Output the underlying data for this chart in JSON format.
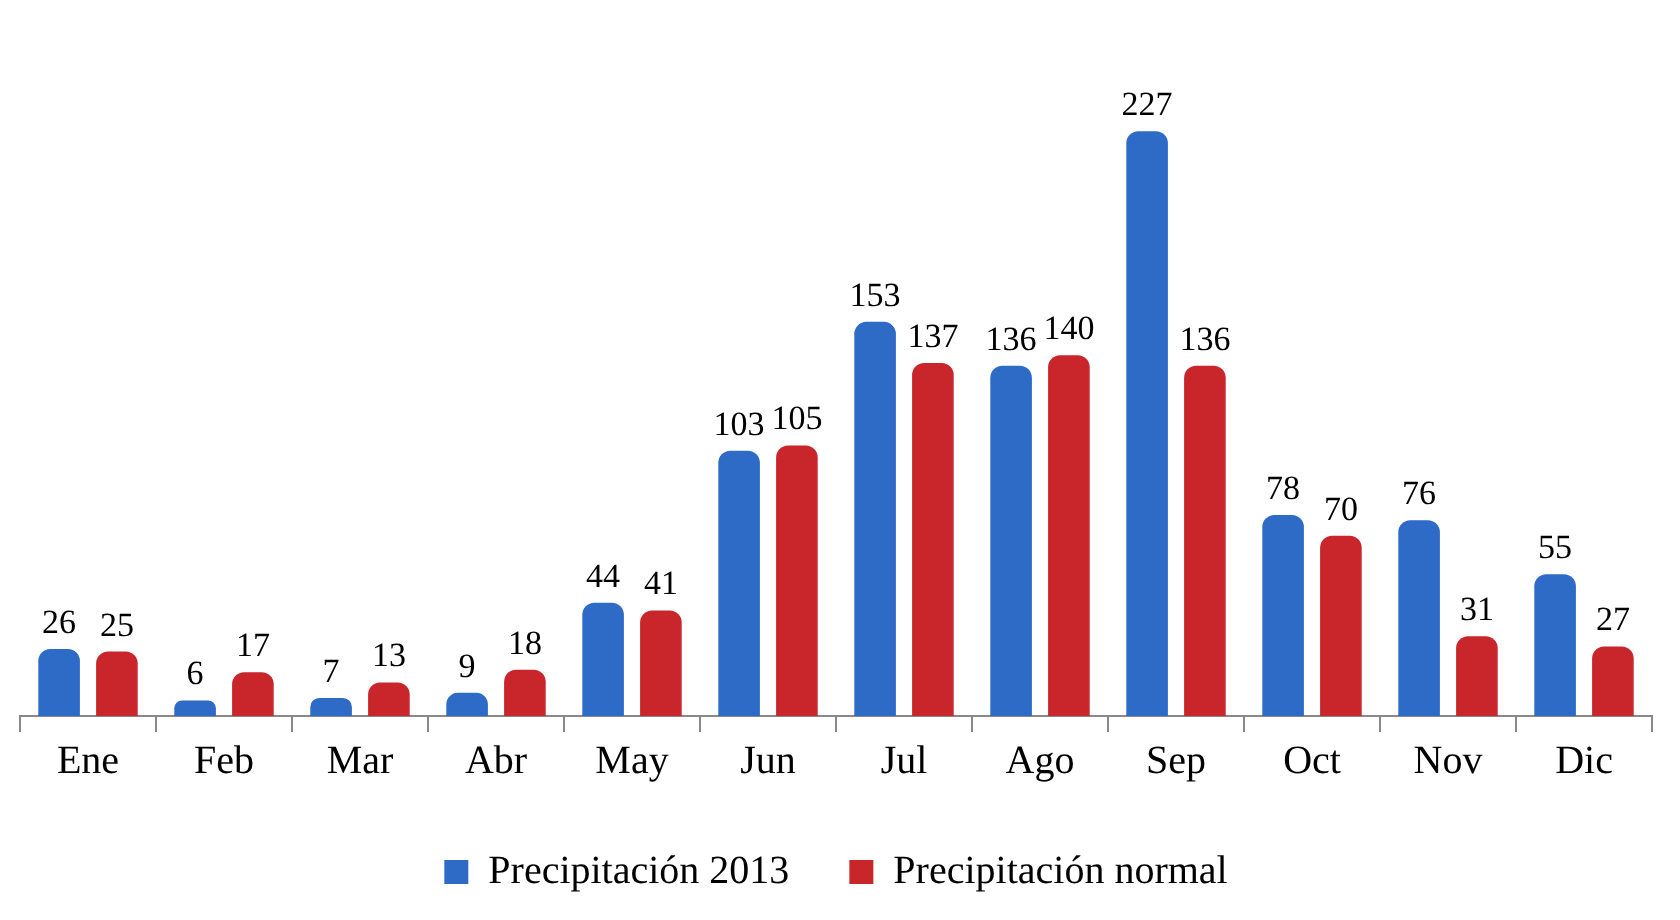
{
  "chart_data": {
    "type": "bar",
    "categories": [
      "Ene",
      "Feb",
      "Mar",
      "Abr",
      "May",
      "Jun",
      "Jul",
      "Ago",
      "Sep",
      "Oct",
      "Nov",
      "Dic"
    ],
    "series": [
      {
        "name": "Precipitación 2013",
        "color": "#2e6bc6",
        "values": [
          26,
          6,
          7,
          9,
          44,
          103,
          153,
          136,
          227,
          78,
          76,
          55
        ]
      },
      {
        "name": "Precipitación normal",
        "color": "#c8262b",
        "values": [
          25,
          17,
          13,
          18,
          41,
          105,
          137,
          140,
          136,
          70,
          31,
          27
        ]
      }
    ],
    "data_labels": true,
    "legend": "bottom",
    "grid": false
  }
}
